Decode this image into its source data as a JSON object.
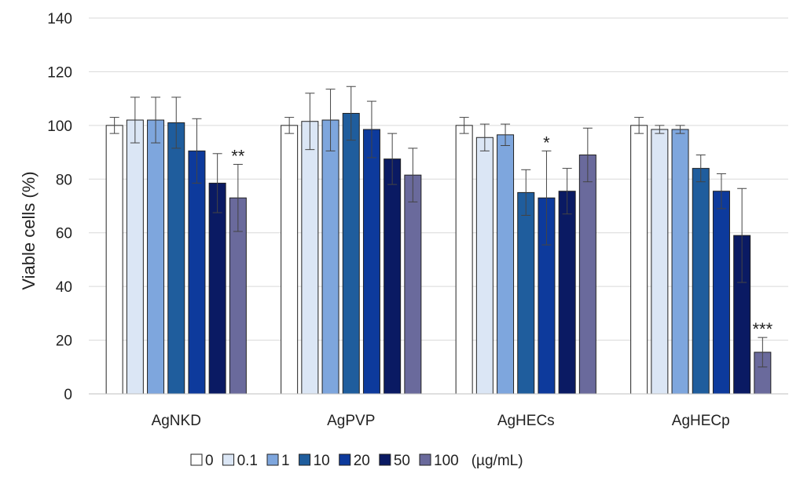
{
  "chart_data": {
    "type": "bar",
    "ylabel": "Viable cells (%)",
    "ylim": [
      0,
      140
    ],
    "yticks": [
      0,
      20,
      40,
      60,
      80,
      100,
      120,
      140
    ],
    "grid": true,
    "legend_position": "bottom",
    "legend_unit": "(µg/mL)",
    "categories": [
      "AgNKD",
      "AgPVP",
      "AgHECs",
      "AgHECp"
    ],
    "series": [
      {
        "name": "0",
        "color": "#ffffff",
        "values": [
          100,
          100,
          100,
          100
        ],
        "errors": [
          3,
          3,
          3,
          3
        ]
      },
      {
        "name": "0.1",
        "color": "#dbe6f5",
        "values": [
          102,
          101.5,
          95.5,
          98.5
        ],
        "errors": [
          8.5,
          10.5,
          5,
          1.5
        ]
      },
      {
        "name": "1",
        "color": "#7ea6dd",
        "values": [
          102,
          102,
          96.5,
          98.5
        ],
        "errors": [
          8.5,
          11.5,
          4,
          1.5
        ]
      },
      {
        "name": "10",
        "color": "#1f5d9d",
        "values": [
          101,
          104.5,
          75,
          84
        ],
        "errors": [
          9.5,
          10,
          8.5,
          5
        ]
      },
      {
        "name": "20",
        "color": "#0d3a9c",
        "values": [
          90.5,
          98.5,
          73,
          75.5
        ],
        "errors": [
          12,
          10.5,
          17.5,
          6.5
        ]
      },
      {
        "name": "50",
        "color": "#0a1a63",
        "values": [
          78.5,
          87.5,
          75.5,
          59
        ],
        "errors": [
          11,
          9.5,
          8.5,
          17.5
        ]
      },
      {
        "name": "100",
        "color": "#6a6a9c",
        "values": [
          73,
          81.5,
          89,
          15.5
        ],
        "errors": [
          12.5,
          10,
          10,
          5.5
        ]
      }
    ],
    "annotations": [
      {
        "category": "AgNKD",
        "series": "100",
        "text": "**"
      },
      {
        "category": "AgHECs",
        "series": "20",
        "text": "*"
      },
      {
        "category": "AgHECp",
        "series": "100",
        "text": "***"
      }
    ]
  }
}
